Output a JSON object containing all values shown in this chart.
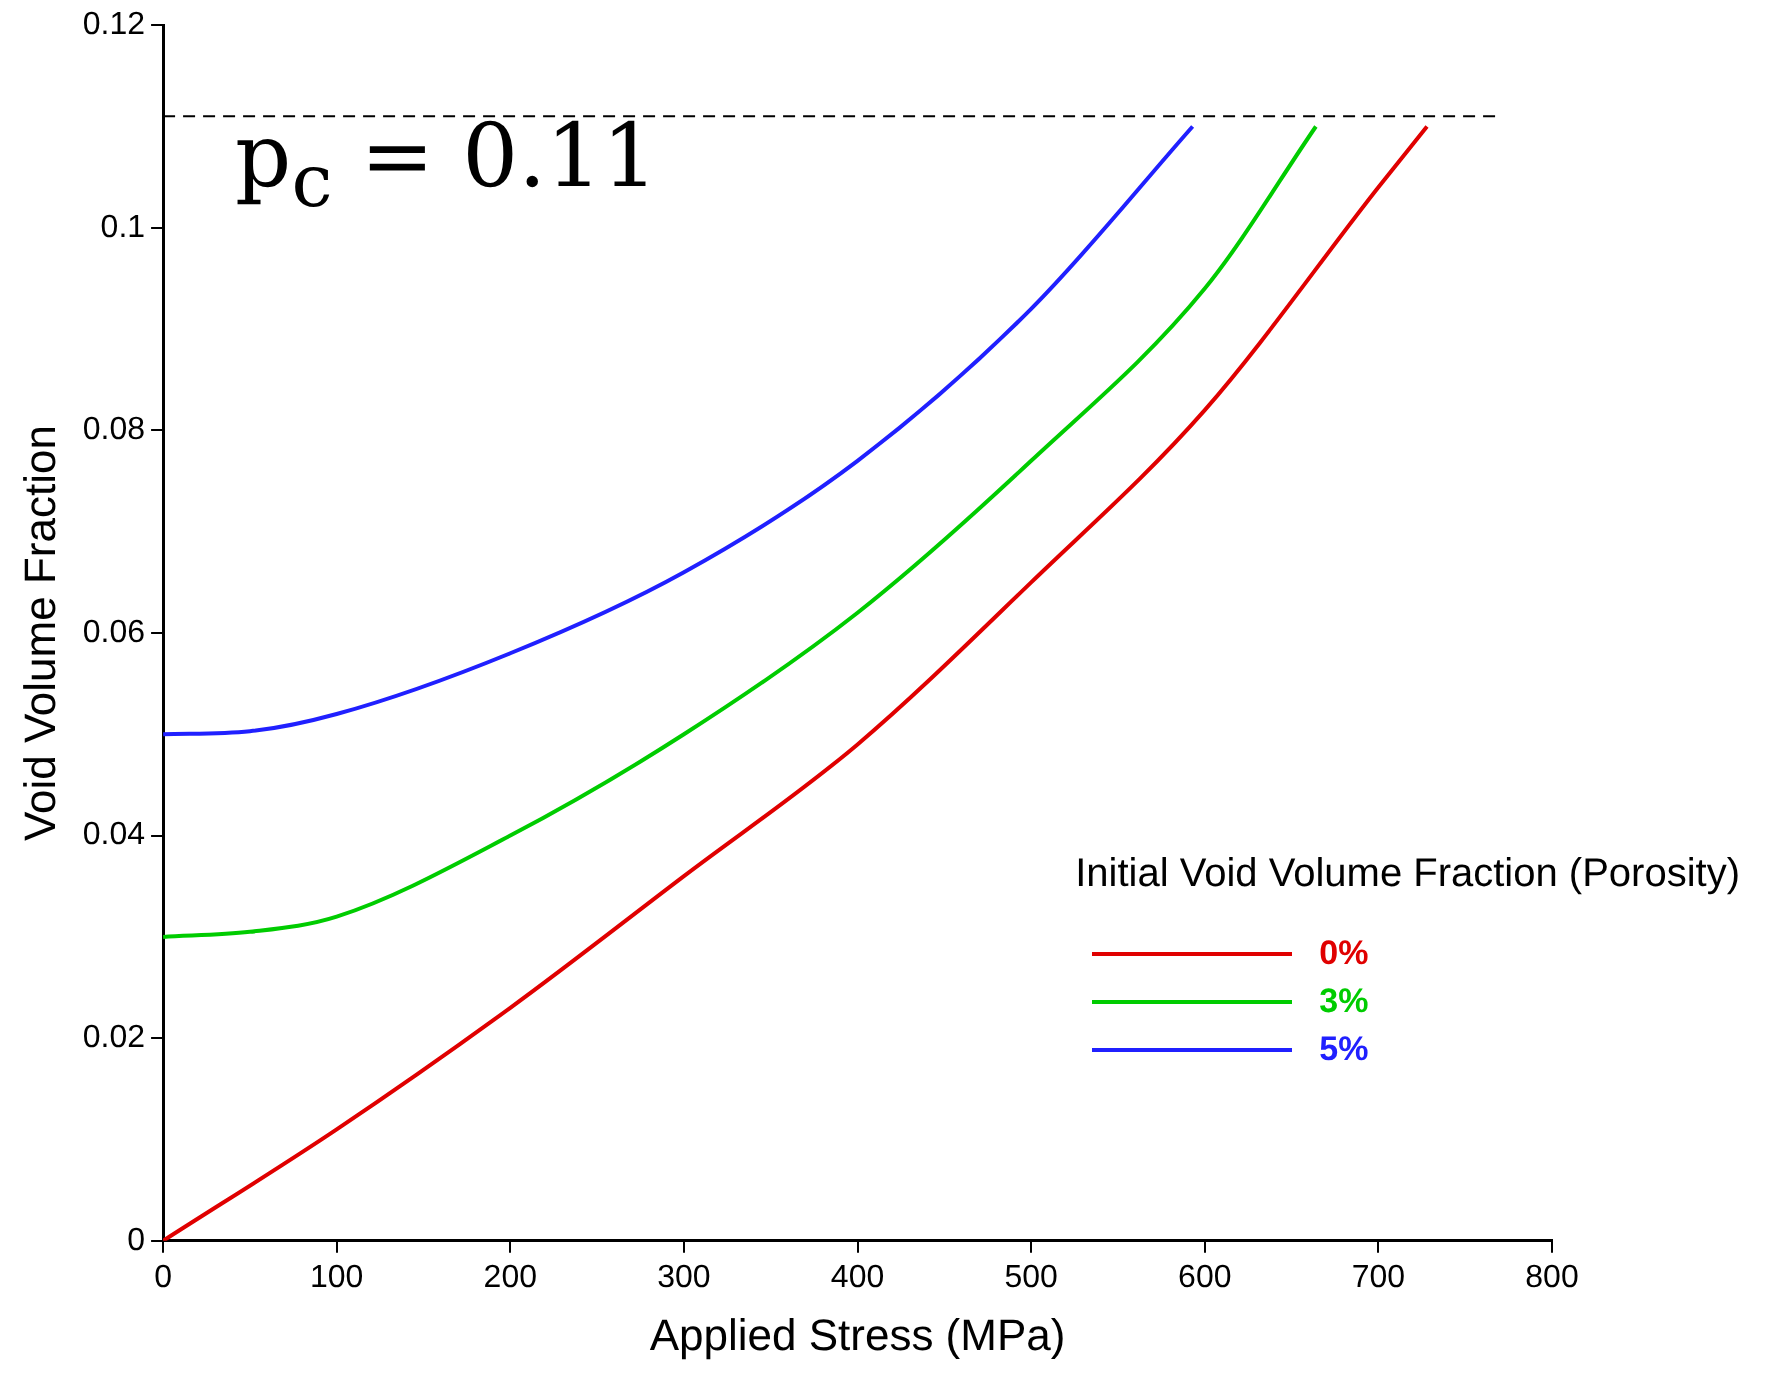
{
  "chart_data": {
    "type": "line",
    "xlabel": "Applied Stress (MPa)",
    "ylabel": "Void Volume Fraction",
    "legend_title": "Initial Void Volume Fraction (Porosity)",
    "legend": "bottom right",
    "line_style": "solid",
    "xlim": [
      0,
      800
    ],
    "xticks": [
      0,
      100,
      200,
      300,
      400,
      500,
      600,
      700,
      800
    ],
    "ylim": [
      0,
      0.12
    ],
    "yticks": [
      0,
      0.02,
      0.04,
      0.06,
      0.08,
      0.1,
      0.12
    ],
    "series": [
      {
        "name": "0%",
        "color": "#e00000",
        "x": [
          0,
          100,
          200,
          300,
          400,
          500,
          600,
          700,
          728
        ],
        "values": [
          0,
          0.011,
          0.023,
          0.036,
          0.049,
          0.065,
          0.082,
          0.104,
          0.11
        ]
      },
      {
        "name": "3%",
        "color": "#00cc00",
        "x": [
          0,
          50,
          100,
          200,
          300,
          400,
          500,
          600,
          664
        ],
        "values": [
          0.03,
          0.0305,
          0.032,
          0.04,
          0.05,
          0.062,
          0.077,
          0.094,
          0.11
        ]
      },
      {
        "name": "5%",
        "color": "#2020ff",
        "x": [
          0,
          50,
          100,
          200,
          300,
          400,
          500,
          593
        ],
        "values": [
          0.05,
          0.0503,
          0.052,
          0.058,
          0.066,
          0.077,
          0.092,
          0.11
        ]
      }
    ],
    "ref_lines": [
      {
        "axis": "y",
        "value": 0.111,
        "color": "#000000",
        "line_style": "dashed"
      }
    ],
    "annotations": [
      "p$_{c}$ = 0.11"
    ]
  }
}
